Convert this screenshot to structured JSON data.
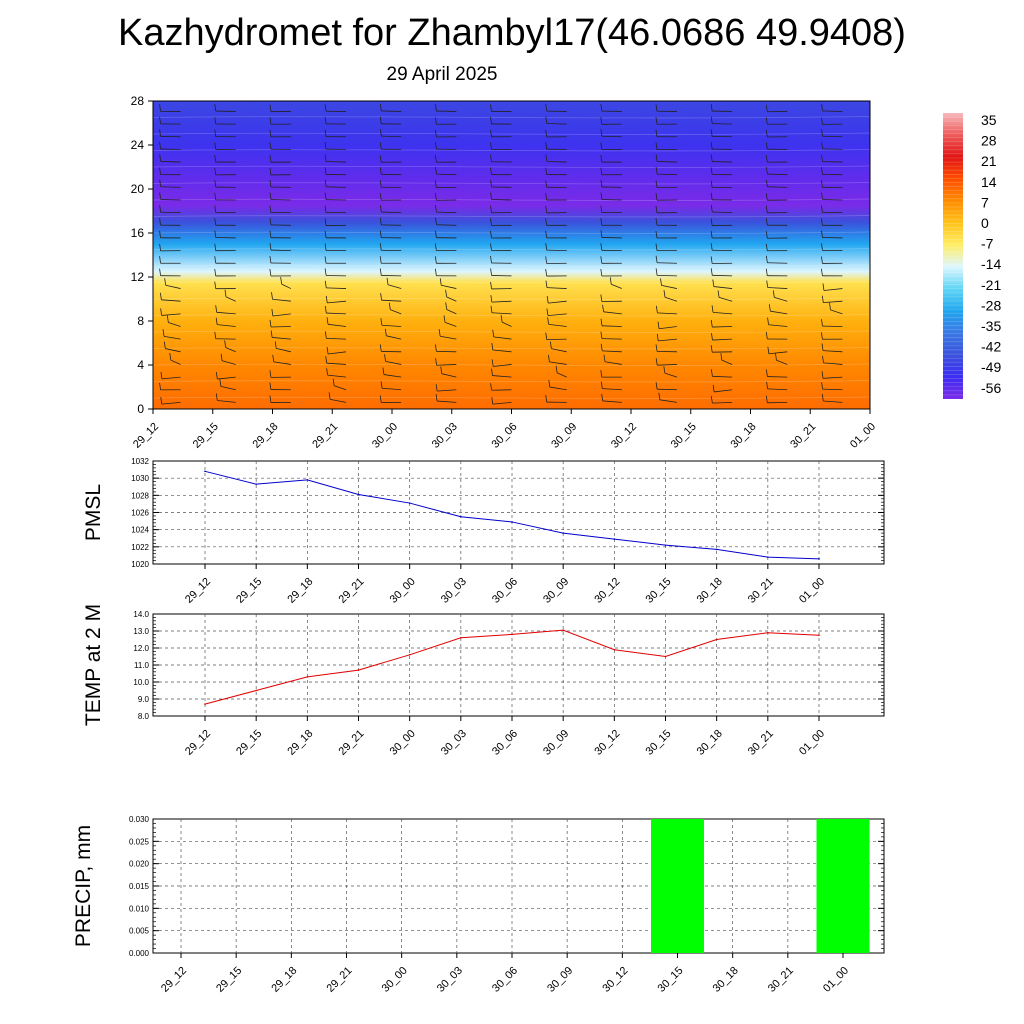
{
  "header": {
    "title": "Kazhydromet for Zhambyl17(46.0686 49.9408)",
    "date": "29 April 2025"
  },
  "time_labels": [
    "29_12",
    "29_15",
    "29_18",
    "29_21",
    "30_00",
    "30_03",
    "30_06",
    "30_09",
    "30_12",
    "30_15",
    "30_18",
    "30_21",
    "01_00"
  ],
  "colors": {
    "pmsl_line": "#0000cc",
    "temp_line": "#e00000",
    "precip_bar": "#00ff00",
    "grid": "#555555"
  },
  "chart_data": [
    {
      "type": "heatmap",
      "title": "Kazhydromet for Zhambyl17(46.0686 49.9408)",
      "subtitle": "29 April 2025",
      "x": [
        "29_12",
        "29_15",
        "29_18",
        "29_21",
        "30_00",
        "30_03",
        "30_06",
        "30_09",
        "30_12",
        "30_15",
        "30_18",
        "30_21",
        "01_00"
      ],
      "yticks": [
        0,
        4,
        8,
        12,
        16,
        20,
        24,
        28
      ],
      "ylim": [
        0,
        28
      ],
      "colorbar": {
        "labels": [
          "35",
          "28",
          "21",
          "14",
          "7",
          "0",
          "-7",
          "-14",
          "-21",
          "-28",
          "-35",
          "-42",
          "-49",
          "-56"
        ],
        "colors": [
          "#f7b9bd",
          "#ee5a5a",
          "#e21414",
          "#ff4f00",
          "#ff8c00",
          "#ffc21a",
          "#ffee66",
          "#ddf6ff",
          "#5fd5f4",
          "#21a6f0",
          "#3a78e4",
          "#3b51dc",
          "#3d2ef2",
          "#7a2be8"
        ]
      },
      "note_visible": "wind barbs overlaid",
      "column_temperature": [
        {
          "level": 0,
          "value": 12
        },
        {
          "level": 4,
          "value": 9
        },
        {
          "level": 8,
          "value": 3
        },
        {
          "level": 11.5,
          "value": -5
        },
        {
          "level": 12.5,
          "value": -14
        },
        {
          "level": 15,
          "value": -28
        },
        {
          "level": 17,
          "value": -42
        },
        {
          "level": 18.5,
          "value": -56
        },
        {
          "level": 21,
          "value": -53
        },
        {
          "level": 24,
          "value": -48
        },
        {
          "level": 28,
          "value": -44
        }
      ]
    },
    {
      "type": "line",
      "ylabel": "PMSL",
      "x": [
        "29_12",
        "29_15",
        "29_18",
        "29_21",
        "30_00",
        "30_03",
        "30_06",
        "30_09",
        "30_12",
        "30_15",
        "30_18",
        "30_21",
        "01_00"
      ],
      "series": [
        {
          "values": [
            1030.8,
            1029.3,
            1029.8,
            1028.1,
            1027.1,
            1025.5,
            1024.9,
            1023.6,
            1022.9,
            1022.2,
            1021.7,
            1020.8,
            1020.6
          ]
        }
      ],
      "ylim": [
        1020,
        1032
      ],
      "yticks": [
        "1020",
        "1022",
        "1024",
        "1026",
        "1028",
        "1030",
        "1032"
      ],
      "grid": true
    },
    {
      "type": "line",
      "ylabel": "TEMP at 2 M",
      "x": [
        "29_12",
        "29_15",
        "29_18",
        "29_21",
        "30_00",
        "30_03",
        "30_06",
        "30_09",
        "30_12",
        "30_15",
        "30_18",
        "30_21",
        "01_00"
      ],
      "series": [
        {
          "values": [
            8.7,
            9.5,
            10.3,
            10.7,
            11.6,
            12.6,
            12.8,
            13.05,
            11.9,
            11.5,
            12.5,
            12.9,
            12.75
          ]
        }
      ],
      "ylim": [
        8.0,
        14.0
      ],
      "yticks": [
        "8.0",
        "9.0",
        "10.0",
        "11.0",
        "12.0",
        "13.0",
        "14.0"
      ],
      "grid": true
    },
    {
      "type": "bar",
      "ylabel": "PRECIP, mm",
      "categories": [
        "29_12",
        "29_15",
        "29_18",
        "29_21",
        "30_00",
        "30_03",
        "30_06",
        "30_09",
        "30_12",
        "30_15",
        "30_18",
        "30_21",
        "01_00"
      ],
      "values": [
        0,
        0,
        0,
        0,
        0,
        0,
        0,
        0,
        0,
        0.03,
        0,
        0,
        0.03
      ],
      "ylim": [
        0.0,
        0.03
      ],
      "yticks": [
        "0.000",
        "0.005",
        "0.010",
        "0.015",
        "0.020",
        "0.025",
        "0.030"
      ],
      "grid": true
    }
  ]
}
